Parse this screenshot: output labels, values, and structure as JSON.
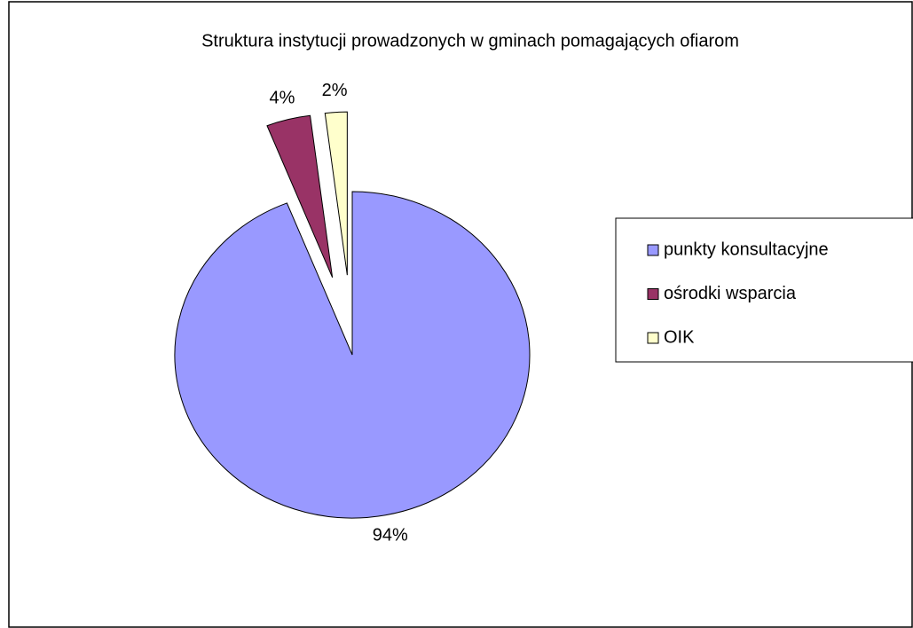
{
  "chart_data": {
    "type": "pie",
    "title": "Struktura instytucji prowadzonych w gminach pomagających ofiarom",
    "categories": [
      "punkty konsultacyjne",
      "ośrodki wsparcia",
      "OIK"
    ],
    "values": [
      94,
      4,
      2
    ],
    "value_labels": [
      "94%",
      "4%",
      "2%"
    ],
    "colors": [
      "#9999ff",
      "#993366",
      "#ffffcc"
    ],
    "legend": "right"
  }
}
